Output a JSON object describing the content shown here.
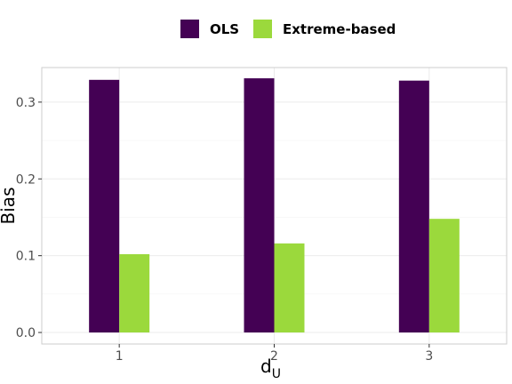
{
  "chart_data": {
    "type": "bar",
    "title": "",
    "xlabel": "d",
    "xlabel_subscript": "U",
    "ylabel": "Bias",
    "categories": [
      "1",
      "2",
      "3"
    ],
    "series": [
      {
        "name": "OLS",
        "color": "#440154",
        "values": [
          0.329,
          0.331,
          0.328
        ]
      },
      {
        "name": "Extreme-based",
        "color": "#9bd93c",
        "values": [
          0.102,
          0.116,
          0.148
        ]
      }
    ],
    "ylim": [
      -0.015,
      0.345
    ],
    "yticks": [
      0.0,
      0.1,
      0.2,
      0.3
    ],
    "ytick_labels": [
      "0.0",
      "0.1",
      "0.2",
      "0.3"
    ],
    "grid": true,
    "legend_position": "top"
  }
}
